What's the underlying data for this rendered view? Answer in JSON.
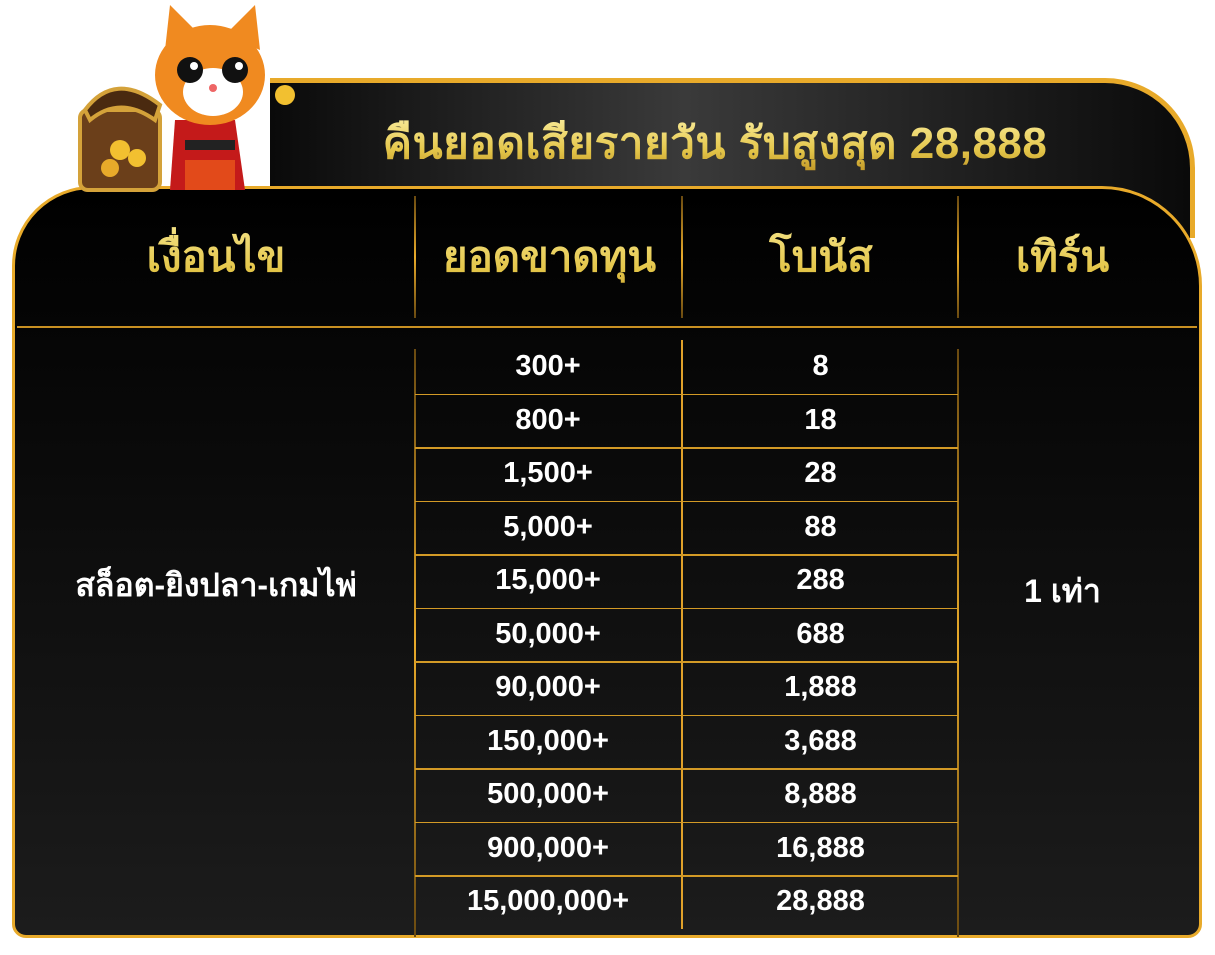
{
  "title": "คืนยอดเสียรายวัน รับสูงสุด 28,888",
  "headers": [
    "เงื่อนไข",
    "ยอดขาดทุน",
    "โบนัส",
    "เทิร์น"
  ],
  "condition": "สล็อต-ยิงปลา-เกมไพ่",
  "turnover": "1 เท่า",
  "rows": [
    {
      "loss": "300+",
      "bonus": "8"
    },
    {
      "loss": "800+",
      "bonus": "18"
    },
    {
      "loss": "1,500+",
      "bonus": "28"
    },
    {
      "loss": "5,000+",
      "bonus": "88"
    },
    {
      "loss": "15,000+",
      "bonus": "288"
    },
    {
      "loss": "50,000+",
      "bonus": "688"
    },
    {
      "loss": "90,000+",
      "bonus": "1,888"
    },
    {
      "loss": "150,000+",
      "bonus": "3,688"
    },
    {
      "loss": "500,000+",
      "bonus": "8,888"
    },
    {
      "loss": "900,000+",
      "bonus": "16,888"
    },
    {
      "loss": "15,000,000+",
      "bonus": "28,888"
    }
  ],
  "colors": {
    "gold": "#e8aa2a",
    "background": "#000000",
    "text": "#ffffff"
  },
  "mascot": "cat-with-treasure-chest-illustration"
}
